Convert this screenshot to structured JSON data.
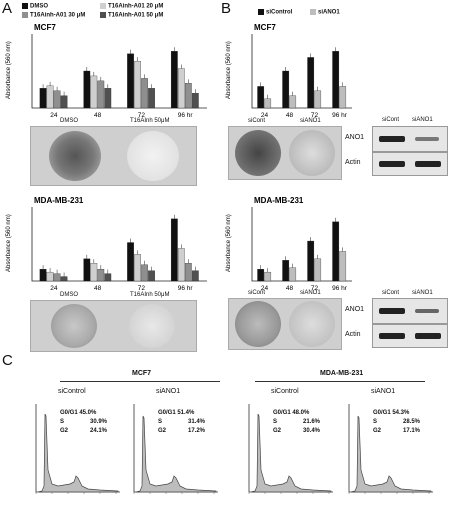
{
  "panelA": {
    "letter": "A",
    "legend": [
      {
        "label": "DMSO",
        "color": "#111111"
      },
      {
        "label": "T16Ainh-A01 20 μM",
        "color": "#cfcfcf"
      },
      {
        "label": "T16Ainh-A01 30 μM",
        "color": "#8f8f8f"
      },
      {
        "label": "T16Ainh-A01 50 μM",
        "color": "#505050"
      }
    ],
    "mcf7_label": "MCF7",
    "mda_label": "MDA-MB-231",
    "photo_labels": [
      "DMSO",
      "T16AInh 50μM"
    ],
    "photo_labels2": [
      "DMSO",
      "T16AInh 50μM"
    ]
  },
  "panelB": {
    "letter": "B",
    "legend": [
      {
        "label": "siControl",
        "color": "#111111"
      },
      {
        "label": "siANO1",
        "color": "#bdbdbd"
      }
    ],
    "mcf7_label": "MCF7",
    "mda_label": "MDA-MB-231",
    "photo_labels": [
      "siCont",
      "siANO1"
    ],
    "photo_labels2": [
      "siCont",
      "siANO1"
    ],
    "blot_header": [
      "siCont",
      "siANO1"
    ],
    "blot_rows": [
      "ANO1",
      "Actin"
    ],
    "blot_header2": [
      "siCont",
      "siANO1"
    ],
    "blot_rows2": [
      "ANO1",
      "Actin"
    ]
  },
  "panelC": {
    "letter": "C",
    "groups": [
      {
        "cell": "MCF7",
        "conds": [
          {
            "name": "siControl",
            "g0": "G0/G1 45.0%",
            "s": "S",
            "sv": "30.9%",
            "g2": "G2",
            "g2v": "24.1%"
          },
          {
            "name": "siANO1",
            "g0": "G0/G1 51.4%",
            "s": "S",
            "sv": "31.4%",
            "g2": "G2",
            "g2v": "17.2%"
          }
        ]
      },
      {
        "cell": "MDA-MB-231",
        "conds": [
          {
            "name": "siControl",
            "g0": "G0/G1 48.0%",
            "s": "S",
            "sv": "21.6%",
            "g2": "G2",
            "g2v": "30.4%"
          },
          {
            "name": "siANO1",
            "g0": "G0/G1 54.3%",
            "s": "S",
            "sv": "28.5%",
            "g2": "G2",
            "g2v": "17.1%"
          }
        ]
      }
    ]
  },
  "chart_data": [
    {
      "type": "bar",
      "title": "MCF7",
      "ylabel": "Absorbance (560 nm)",
      "categories": [
        "24",
        "48",
        "72",
        "96 hr"
      ],
      "ylim": [
        0,
        1.5
      ],
      "series": [
        {
          "name": "DMSO",
          "values": [
            0.4,
            0.75,
            1.1,
            1.15
          ]
        },
        {
          "name": "T16Ainh-A01 20 μM",
          "values": [
            0.45,
            0.65,
            0.95,
            0.8
          ]
        },
        {
          "name": "T16Ainh-A01 30 μM",
          "values": [
            0.35,
            0.55,
            0.6,
            0.5
          ]
        },
        {
          "name": "T16Ainh-A01 50 μM",
          "values": [
            0.25,
            0.4,
            0.4,
            0.3
          ]
        }
      ]
    },
    {
      "type": "bar",
      "title": "MDA-MB-231",
      "ylabel": "Absorbance (560 nm)",
      "categories": [
        "24",
        "48",
        "72",
        "96 hr"
      ],
      "ylim": [
        0,
        2.5
      ],
      "series": [
        {
          "name": "DMSO",
          "values": [
            0.4,
            0.75,
            1.3,
            2.1
          ]
        },
        {
          "name": "T16Ainh-A01 20 μM",
          "values": [
            0.3,
            0.6,
            0.9,
            1.1
          ]
        },
        {
          "name": "T16Ainh-A01 30 μM",
          "values": [
            0.25,
            0.4,
            0.55,
            0.6
          ]
        },
        {
          "name": "T16Ainh-A01 50 μM",
          "values": [
            0.15,
            0.25,
            0.35,
            0.35
          ]
        }
      ]
    },
    {
      "type": "bar",
      "title": "MCF7",
      "ylabel": "Absorbance (560 nm)",
      "categories": [
        "24",
        "48",
        "72",
        "96 hr"
      ],
      "ylim": [
        0,
        1.2
      ],
      "series": [
        {
          "name": "siControl",
          "values": [
            0.35,
            0.6,
            0.82,
            0.92
          ]
        },
        {
          "name": "siANO1",
          "values": [
            0.15,
            0.2,
            0.28,
            0.35
          ]
        }
      ]
    },
    {
      "type": "bar",
      "title": "MDA-MB-231",
      "ylabel": "Absorbance (560 nm)",
      "categories": [
        "24",
        "48",
        "72",
        "96 hr"
      ],
      "ylim": [
        0,
        2.5
      ],
      "series": [
        {
          "name": "siControl",
          "values": [
            0.4,
            0.7,
            1.35,
            2.0
          ]
        },
        {
          "name": "siANO1",
          "values": [
            0.3,
            0.45,
            0.75,
            1.0
          ]
        }
      ]
    }
  ]
}
